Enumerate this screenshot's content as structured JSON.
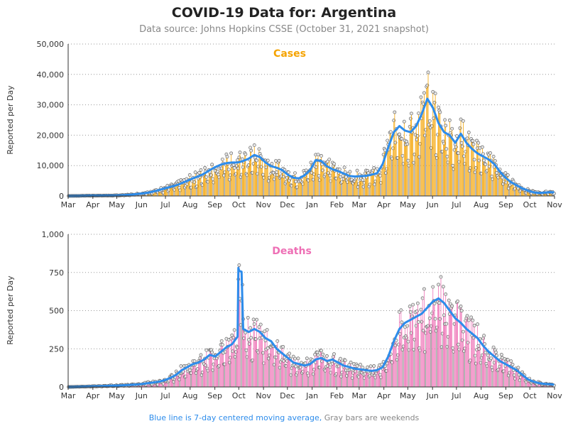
{
  "title": "COVID-19 Data for: Argentina",
  "subtitle": "Data source: Johns Hopkins CSSE (October 31, 2021 snapshot)",
  "footer": {
    "blue_note": "Blue line is 7-day centered moving average,",
    "gray_note": " Gray bars are weekends"
  },
  "colors": {
    "cases": "#F5A300",
    "deaths": "#EE6FB5",
    "average": "#2D8CEB",
    "weekend": "#999999",
    "gridline": "#999999"
  },
  "chart_data": [
    {
      "type": "bar",
      "panel_title": "Cases",
      "ylabel": "Reported per Day",
      "ylim": [
        0,
        50000
      ],
      "yticks": [
        0,
        10000,
        20000,
        30000,
        40000,
        50000
      ],
      "ytick_labels": [
        "0",
        "10,000",
        "20,000",
        "30,000",
        "40,000",
        "50,000"
      ],
      "xtick_labels": [
        "Mar",
        "Apr",
        "May",
        "Jun",
        "Jul",
        "Aug",
        "Sep",
        "Oct",
        "Nov",
        "Dec",
        "Jan",
        "Feb",
        "Mar",
        "Apr",
        "May",
        "Jun",
        "Jul",
        "Aug",
        "Sep",
        "Oct",
        "Nov"
      ],
      "month_starts": [
        "2020-03-01",
        "2020-04-01",
        "2020-05-01",
        "2020-06-01",
        "2020-07-01",
        "2020-08-01",
        "2020-09-01",
        "2020-10-01",
        "2020-11-01",
        "2020-12-01",
        "2021-01-01",
        "2021-02-01",
        "2021-03-01",
        "2021-04-01",
        "2021-05-01",
        "2021-06-01",
        "2021-07-01",
        "2021-08-01",
        "2021-09-01",
        "2021-10-01",
        "2021-11-01"
      ],
      "date_range": [
        "2020-03-01",
        "2021-10-31"
      ],
      "grid": true,
      "series": [
        {
          "name": "7-day centered moving average",
          "weekly_points": [
            [
              "2020-03-03",
              5
            ],
            [
              "2020-03-10",
              20
            ],
            [
              "2020-03-17",
              50
            ],
            [
              "2020-03-24",
              100
            ],
            [
              "2020-03-31",
              110
            ],
            [
              "2020-04-07",
              120
            ],
            [
              "2020-04-14",
              130
            ],
            [
              "2020-04-21",
              140
            ],
            [
              "2020-04-28",
              160
            ],
            [
              "2020-05-05",
              220
            ],
            [
              "2020-05-12",
              320
            ],
            [
              "2020-05-19",
              450
            ],
            [
              "2020-05-26",
              650
            ],
            [
              "2020-06-02",
              850
            ],
            [
              "2020-06-09",
              1100
            ],
            [
              "2020-06-16",
              1500
            ],
            [
              "2020-06-23",
              2000
            ],
            [
              "2020-06-30",
              2500
            ],
            [
              "2020-07-07",
              3000
            ],
            [
              "2020-07-14",
              3500
            ],
            [
              "2020-07-21",
              4200
            ],
            [
              "2020-07-28",
              5000
            ],
            [
              "2020-08-04",
              5800
            ],
            [
              "2020-08-11",
              6500
            ],
            [
              "2020-08-18",
              7300
            ],
            [
              "2020-08-25",
              8500
            ],
            [
              "2020-09-01",
              9500
            ],
            [
              "2020-09-08",
              10300
            ],
            [
              "2020-09-15",
              10800
            ],
            [
              "2020-09-22",
              11000
            ],
            [
              "2020-09-29",
              11000
            ],
            [
              "2020-10-06",
              11500
            ],
            [
              "2020-10-13",
              12300
            ],
            [
              "2020-10-20",
              13500
            ],
            [
              "2020-10-27",
              12800
            ],
            [
              "2020-11-03",
              11000
            ],
            [
              "2020-11-10",
              9800
            ],
            [
              "2020-11-17",
              9300
            ],
            [
              "2020-11-24",
              8500
            ],
            [
              "2020-12-01",
              7000
            ],
            [
              "2020-12-08",
              6000
            ],
            [
              "2020-12-15",
              5800
            ],
            [
              "2020-12-22",
              6800
            ],
            [
              "2020-12-29",
              8500
            ],
            [
              "2021-01-05",
              11800
            ],
            [
              "2021-01-12",
              11500
            ],
            [
              "2021-01-19",
              9800
            ],
            [
              "2021-01-26",
              8800
            ],
            [
              "2021-02-02",
              8200
            ],
            [
              "2021-02-09",
              7400
            ],
            [
              "2021-02-16",
              6600
            ],
            [
              "2021-02-23",
              6400
            ],
            [
              "2021-03-02",
              6500
            ],
            [
              "2021-03-09",
              6600
            ],
            [
              "2021-03-16",
              7000
            ],
            [
              "2021-03-23",
              7500
            ],
            [
              "2021-03-30",
              10500
            ],
            [
              "2021-04-06",
              16000
            ],
            [
              "2021-04-13",
              21000
            ],
            [
              "2021-04-20",
              23000
            ],
            [
              "2021-04-27",
              21500
            ],
            [
              "2021-05-04",
              21000
            ],
            [
              "2021-05-11",
              23000
            ],
            [
              "2021-05-18",
              27000
            ],
            [
              "2021-05-25",
              32000
            ],
            [
              "2021-06-01",
              29000
            ],
            [
              "2021-06-08",
              24000
            ],
            [
              "2021-06-15",
              21000
            ],
            [
              "2021-06-22",
              20000
            ],
            [
              "2021-06-29",
              17500
            ],
            [
              "2021-07-06",
              20500
            ],
            [
              "2021-07-13",
              17500
            ],
            [
              "2021-07-20",
              15500
            ],
            [
              "2021-07-27",
              14000
            ],
            [
              "2021-08-03",
              13000
            ],
            [
              "2021-08-10",
              12000
            ],
            [
              "2021-08-17",
              10500
            ],
            [
              "2021-08-24",
              8000
            ],
            [
              "2021-08-31",
              6000
            ],
            [
              "2021-09-07",
              4500
            ],
            [
              "2021-09-14",
              3500
            ],
            [
              "2021-09-21",
              2500
            ],
            [
              "2021-09-28",
              1800
            ],
            [
              "2021-10-05",
              1200
            ],
            [
              "2021-10-12",
              1000
            ],
            [
              "2021-10-19",
              1100
            ],
            [
              "2021-10-26",
              1250
            ],
            [
              "2021-10-31",
              1200
            ]
          ]
        }
      ]
    },
    {
      "type": "bar",
      "panel_title": "Deaths",
      "ylabel": "Reported per Day",
      "ylim": [
        0,
        1000
      ],
      "yticks": [
        0,
        250,
        500,
        750,
        1000
      ],
      "ytick_labels": [
        "0",
        "250",
        "500",
        "750",
        "1,000"
      ],
      "xtick_labels": [
        "Mar",
        "Apr",
        "May",
        "Jun",
        "Jul",
        "Aug",
        "Sep",
        "Oct",
        "Nov",
        "Dec",
        "Jan",
        "Feb",
        "Mar",
        "Apr",
        "May",
        "Jun",
        "Jul",
        "Aug",
        "Sep",
        "Oct",
        "Nov"
      ],
      "month_starts": [
        "2020-03-01",
        "2020-04-01",
        "2020-05-01",
        "2020-06-01",
        "2020-07-01",
        "2020-08-01",
        "2020-09-01",
        "2020-10-01",
        "2020-11-01",
        "2020-12-01",
        "2021-01-01",
        "2021-02-01",
        "2021-03-01",
        "2021-04-01",
        "2021-05-01",
        "2021-06-01",
        "2021-07-01",
        "2021-08-01",
        "2021-09-01",
        "2021-10-01",
        "2021-11-01"
      ],
      "date_range": [
        "2020-03-01",
        "2021-10-31"
      ],
      "grid": true,
      "series": [
        {
          "name": "7-day centered moving average",
          "weekly_points": [
            [
              "2020-03-03",
              0
            ],
            [
              "2020-03-10",
              1
            ],
            [
              "2020-03-17",
              2
            ],
            [
              "2020-03-24",
              3
            ],
            [
              "2020-03-31",
              4
            ],
            [
              "2020-04-07",
              5
            ],
            [
              "2020-04-14",
              6
            ],
            [
              "2020-04-21",
              8
            ],
            [
              "2020-04-28",
              9
            ],
            [
              "2020-05-05",
              10
            ],
            [
              "2020-05-12",
              12
            ],
            [
              "2020-05-19",
              14
            ],
            [
              "2020-05-26",
              16
            ],
            [
              "2020-06-02",
              20
            ],
            [
              "2020-06-09",
              25
            ],
            [
              "2020-06-16",
              30
            ],
            [
              "2020-06-23",
              35
            ],
            [
              "2020-06-30",
              45
            ],
            [
              "2020-07-07",
              60
            ],
            [
              "2020-07-14",
              80
            ],
            [
              "2020-07-21",
              110
            ],
            [
              "2020-07-28",
              130
            ],
            [
              "2020-08-04",
              150
            ],
            [
              "2020-08-11",
              160
            ],
            [
              "2020-08-18",
              180
            ],
            [
              "2020-08-25",
              210
            ],
            [
              "2020-09-01",
              200
            ],
            [
              "2020-09-08",
              230
            ],
            [
              "2020-09-15",
              260
            ],
            [
              "2020-09-22",
              280
            ],
            [
              "2020-09-29",
              330
            ],
            [
              "2020-09-30",
              780
            ],
            [
              "2020-10-01",
              760
            ],
            [
              "2020-10-04",
              755
            ],
            [
              "2020-10-06",
              380
            ],
            [
              "2020-10-13",
              360
            ],
            [
              "2020-10-20",
              380
            ],
            [
              "2020-10-27",
              360
            ],
            [
              "2020-11-03",
              320
            ],
            [
              "2020-11-10",
              300
            ],
            [
              "2020-11-17",
              250
            ],
            [
              "2020-11-24",
              220
            ],
            [
              "2020-12-01",
              190
            ],
            [
              "2020-12-08",
              160
            ],
            [
              "2020-12-15",
              150
            ],
            [
              "2020-12-22",
              140
            ],
            [
              "2020-12-29",
              150
            ],
            [
              "2021-01-05",
              180
            ],
            [
              "2021-01-12",
              190
            ],
            [
              "2021-01-19",
              170
            ],
            [
              "2021-01-26",
              180
            ],
            [
              "2021-02-02",
              160
            ],
            [
              "2021-02-09",
              140
            ],
            [
              "2021-02-16",
              130
            ],
            [
              "2021-02-23",
              120
            ],
            [
              "2021-03-02",
              115
            ],
            [
              "2021-03-09",
              110
            ],
            [
              "2021-03-16",
              105
            ],
            [
              "2021-03-23",
              110
            ],
            [
              "2021-03-30",
              130
            ],
            [
              "2021-04-06",
              200
            ],
            [
              "2021-04-13",
              300
            ],
            [
              "2021-04-20",
              380
            ],
            [
              "2021-04-27",
              420
            ],
            [
              "2021-05-04",
              440
            ],
            [
              "2021-05-11",
              460
            ],
            [
              "2021-05-18",
              480
            ],
            [
              "2021-05-25",
              520
            ],
            [
              "2021-06-01",
              560
            ],
            [
              "2021-06-08",
              580
            ],
            [
              "2021-06-15",
              550
            ],
            [
              "2021-06-22",
              500
            ],
            [
              "2021-06-29",
              450
            ],
            [
              "2021-07-06",
              420
            ],
            [
              "2021-07-13",
              380
            ],
            [
              "2021-07-20",
              350
            ],
            [
              "2021-07-27",
              320
            ],
            [
              "2021-08-03",
              270
            ],
            [
              "2021-08-10",
              230
            ],
            [
              "2021-08-17",
              200
            ],
            [
              "2021-08-24",
              170
            ],
            [
              "2021-08-31",
              150
            ],
            [
              "2021-09-07",
              130
            ],
            [
              "2021-09-14",
              110
            ],
            [
              "2021-09-21",
              80
            ],
            [
              "2021-09-28",
              50
            ],
            [
              "2021-10-05",
              35
            ],
            [
              "2021-10-12",
              25
            ],
            [
              "2021-10-19",
              20
            ],
            [
              "2021-10-26",
              18
            ],
            [
              "2021-10-31",
              15
            ]
          ]
        }
      ]
    }
  ]
}
